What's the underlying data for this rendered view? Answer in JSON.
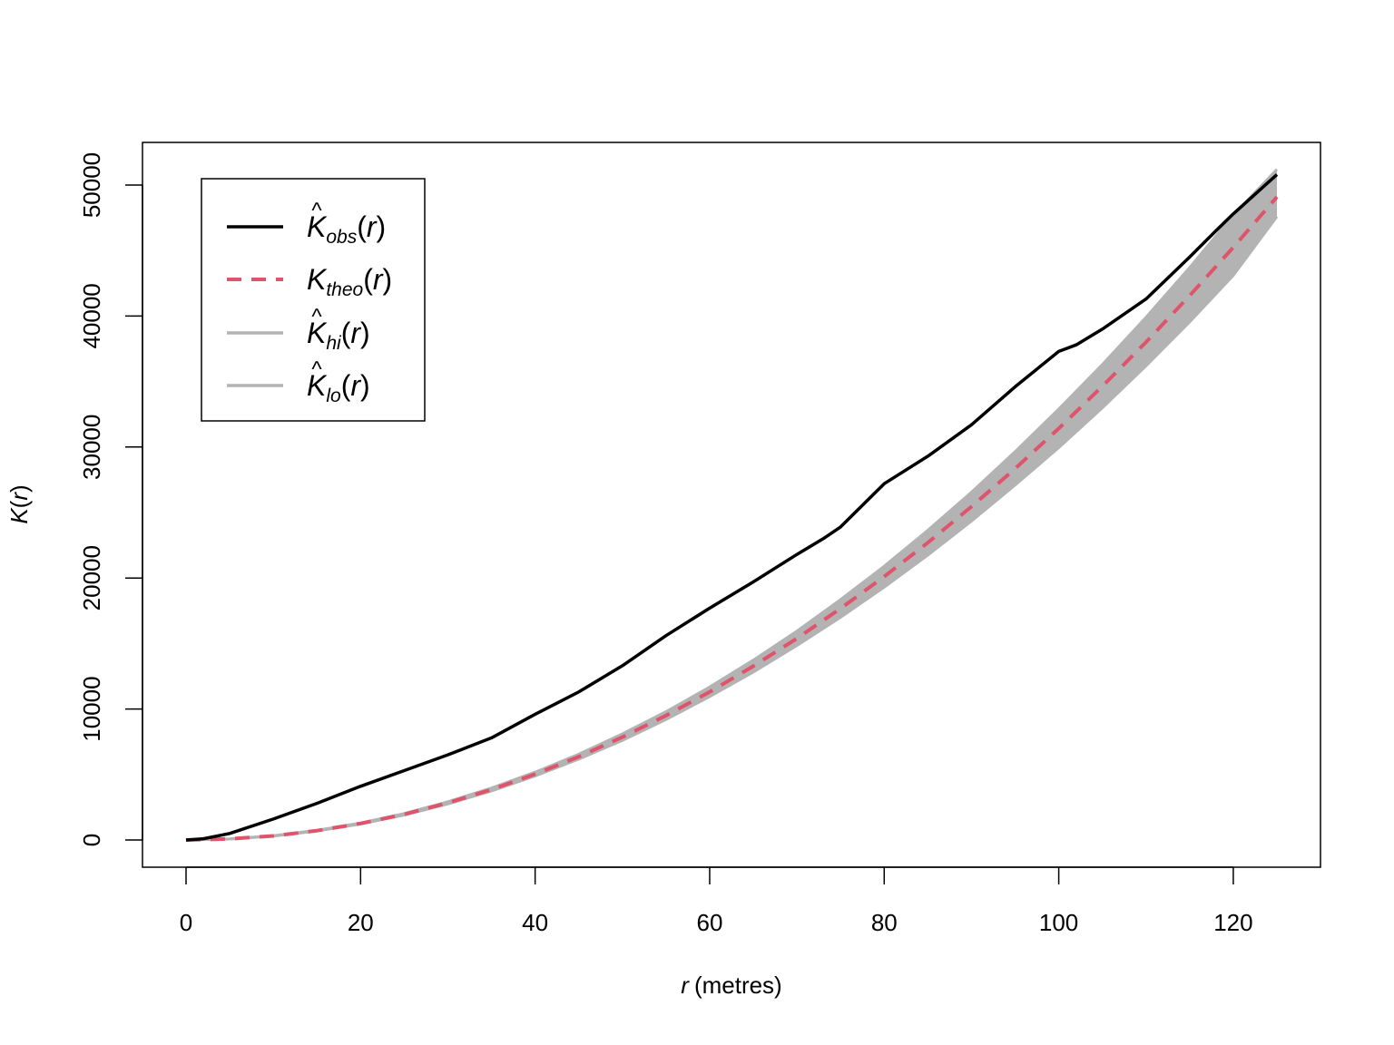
{
  "chart_data": {
    "type": "line",
    "xlabel": {
      "var": "r",
      "unit": "(metres)"
    },
    "ylabel": {
      "base": "K",
      "paren_open": "(",
      "arg": "r",
      "paren_close": ")"
    },
    "xlim": [
      0,
      125
    ],
    "ylim": [
      0,
      50000
    ],
    "x_ticks": [
      "0",
      "20",
      "40",
      "60",
      "80",
      "100",
      "120"
    ],
    "y_ticks": [
      "0",
      "10000",
      "20000",
      "30000",
      "40000",
      "50000"
    ],
    "grid": false,
    "legend_position": "top-left",
    "colors": {
      "obs": "#000000",
      "theo": "#DF536B",
      "envelope": "#B3B3B3"
    },
    "series": [
      {
        "key": "obs",
        "label": {
          "hat": "^",
          "base": "K",
          "sub": "obs",
          "arg": "r"
        },
        "style": "solid",
        "x": [
          0,
          2,
          5,
          10,
          15,
          20,
          25,
          30,
          35,
          40,
          45,
          50,
          55,
          60,
          65,
          70,
          73,
          75,
          80,
          85,
          90,
          95,
          100,
          102,
          105,
          110,
          115,
          118,
          120,
          125
        ],
        "y": [
          0,
          100,
          500,
          1600,
          2800,
          4100,
          5300,
          6500,
          7800,
          9600,
          11300,
          13300,
          15600,
          17700,
          19700,
          21800,
          23000,
          23900,
          27200,
          29300,
          31700,
          34600,
          37300,
          37800,
          39000,
          41300,
          44500,
          46500,
          47800,
          50800
        ]
      },
      {
        "key": "theo",
        "label": {
          "hat": "",
          "base": "K",
          "sub": "theo",
          "arg": "r"
        },
        "style": "dashed",
        "x": [
          0,
          5,
          10,
          15,
          20,
          25,
          30,
          35,
          40,
          45,
          50,
          55,
          60,
          65,
          70,
          75,
          80,
          85,
          90,
          95,
          100,
          105,
          110,
          115,
          120,
          125
        ],
        "y": [
          0,
          80,
          310,
          710,
          1260,
          1960,
          2830,
          3850,
          5030,
          6360,
          7850,
          9500,
          11310,
          13270,
          15390,
          17670,
          20110,
          22700,
          25450,
          28350,
          31420,
          34640,
          38010,
          41550,
          45240,
          49090
        ]
      },
      {
        "key": "hi",
        "label": {
          "hat": "^",
          "base": "K",
          "sub": "hi",
          "arg": "r"
        },
        "style": "solid",
        "x": [
          0,
          5,
          10,
          15,
          20,
          25,
          30,
          35,
          40,
          45,
          50,
          55,
          60,
          65,
          70,
          75,
          80,
          85,
          90,
          95,
          100,
          105,
          110,
          115,
          120,
          125
        ],
        "y": [
          0,
          90,
          330,
          740,
          1300,
          2020,
          2920,
          3970,
          5180,
          6550,
          8100,
          9800,
          11680,
          13730,
          15950,
          18350,
          20900,
          23650,
          26550,
          29650,
          32900,
          36300,
          39900,
          43700,
          47700,
          51200
        ]
      },
      {
        "key": "lo",
        "label": {
          "hat": "^",
          "base": "K",
          "sub": "lo",
          "arg": "r"
        },
        "style": "solid",
        "x": [
          0,
          5,
          10,
          15,
          20,
          25,
          30,
          35,
          40,
          45,
          50,
          55,
          60,
          65,
          70,
          75,
          80,
          85,
          90,
          95,
          100,
          105,
          110,
          115,
          120,
          125
        ],
        "y": [
          0,
          70,
          290,
          680,
          1220,
          1900,
          2750,
          3750,
          4880,
          6170,
          7600,
          9200,
          10950,
          12820,
          14850,
          17000,
          19300,
          21750,
          24350,
          27100,
          29950,
          33000,
          36200,
          39550,
          43100,
          47600
        ]
      }
    ]
  }
}
